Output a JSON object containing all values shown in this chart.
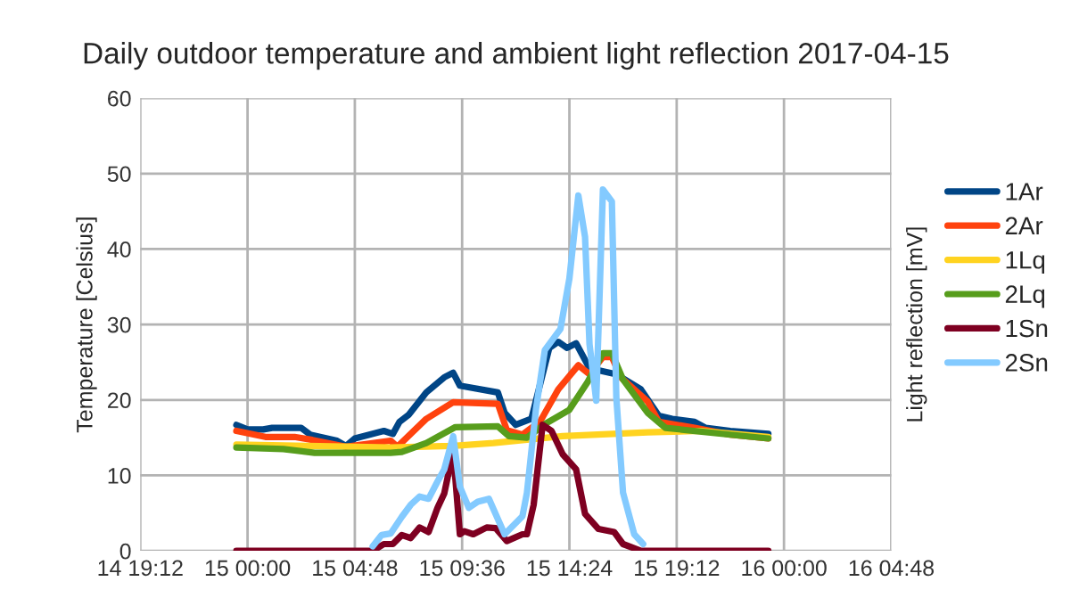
{
  "chart_data": {
    "type": "line",
    "title": "Daily outdoor temperature and ambient light reflection 2017-04-15",
    "ylabel": "Temperature [Celsius]",
    "y2label": "Light reflection [mV]",
    "xlim": [
      "2017-04-14T19:12",
      "2017-04-16T04:48"
    ],
    "xticks": [
      {
        "value": "2017-04-14T19:12",
        "label": "14 19:12"
      },
      {
        "value": "2017-04-15T00:00",
        "label": "15 00:00"
      },
      {
        "value": "2017-04-15T04:48",
        "label": "15 04:48"
      },
      {
        "value": "2017-04-15T09:36",
        "label": "15 09:36"
      },
      {
        "value": "2017-04-15T14:24",
        "label": "15 14:24"
      },
      {
        "value": "2017-04-15T19:12",
        "label": "15 19:12"
      },
      {
        "value": "2017-04-16T00:00",
        "label": "16 00:00"
      },
      {
        "value": "2017-04-16T04:48",
        "label": "16 04:48"
      }
    ],
    "ylim": [
      0,
      60
    ],
    "yticks": [
      0,
      10,
      20,
      30,
      40,
      50,
      60
    ],
    "grid": true,
    "legend": "right",
    "marker": "none",
    "line_style": "solid",
    "series": [
      {
        "name": "1Ar",
        "color": "#004586",
        "x": [
          "2017-04-14T23:30",
          "2017-04-15T00:00",
          "2017-04-15T00:42",
          "2017-04-15T01:06",
          "2017-04-15T02:24",
          "2017-04-15T02:48",
          "2017-04-15T04:00",
          "2017-04-15T04:24",
          "2017-04-15T04:48",
          "2017-04-15T06:06",
          "2017-04-15T06:30",
          "2017-04-15T06:48",
          "2017-04-15T07:12",
          "2017-04-15T08:00",
          "2017-04-15T08:48",
          "2017-04-15T09:12",
          "2017-04-15T09:30",
          "2017-04-15T11:12",
          "2017-04-15T11:30",
          "2017-04-15T12:00",
          "2017-04-15T12:42",
          "2017-04-15T13:30",
          "2017-04-15T13:54",
          "2017-04-15T14:18",
          "2017-04-15T14:42",
          "2017-04-15T15:18",
          "2017-04-15T16:30",
          "2017-04-15T17:36",
          "2017-04-15T18:24",
          "2017-04-15T19:00",
          "2017-04-15T20:00",
          "2017-04-15T20:30",
          "2017-04-15T21:36",
          "2017-04-15T23:18"
        ],
        "values": [
          16.7,
          16.1,
          16.1,
          16.3,
          16.3,
          15.4,
          14.6,
          13.9,
          14.9,
          15.9,
          15.5,
          17.1,
          18,
          21,
          23,
          23.6,
          21.9,
          21,
          18.3,
          16.7,
          17.5,
          26.9,
          27.7,
          26.9,
          27.5,
          24.2,
          23.4,
          21.4,
          17.9,
          17.5,
          17.1,
          16.3,
          15.9,
          15.5
        ]
      },
      {
        "name": "2Ar",
        "color": "#ff420e",
        "x": [
          "2017-04-14T23:30",
          "2017-04-15T00:48",
          "2017-04-15T02:06",
          "2017-04-15T02:54",
          "2017-04-15T04:24",
          "2017-04-15T06:24",
          "2017-04-15T06:42",
          "2017-04-15T08:00",
          "2017-04-15T09:12",
          "2017-04-15T11:12",
          "2017-04-15T11:36",
          "2017-04-15T12:18",
          "2017-04-15T13:06",
          "2017-04-15T13:54",
          "2017-04-15T14:48",
          "2017-04-15T15:18",
          "2017-04-15T15:54",
          "2017-04-15T16:18",
          "2017-04-15T16:42",
          "2017-04-15T17:54",
          "2017-04-15T18:24",
          "2017-04-15T20:00",
          "2017-04-15T21:36",
          "2017-04-15T23:18"
        ],
        "values": [
          15.9,
          15.1,
          15.1,
          14.7,
          13.8,
          14.6,
          13.8,
          17.5,
          19.7,
          19.5,
          16,
          15.4,
          17.2,
          21.4,
          24.6,
          23.4,
          25.7,
          25.7,
          23,
          19.8,
          17.1,
          16.3,
          15.4,
          14.9
        ]
      },
      {
        "name": "1Lq",
        "color": "#ffd320",
        "x": [
          "2017-04-14T23:30",
          "2017-04-15T06:24",
          "2017-04-15T09:06",
          "2017-04-15T11:00",
          "2017-04-15T14:06",
          "2017-04-15T17:54",
          "2017-04-15T20:18",
          "2017-04-15T23:18"
        ],
        "values": [
          14.1,
          13.7,
          13.9,
          14.3,
          15.2,
          15.7,
          15.9,
          15.1
        ]
      },
      {
        "name": "2Lq",
        "color": "#579d1c",
        "x": [
          "2017-04-14T23:30",
          "2017-04-15T01:36",
          "2017-04-15T03:00",
          "2017-04-15T06:24",
          "2017-04-15T06:54",
          "2017-04-15T08:00",
          "2017-04-15T09:18",
          "2017-04-15T11:12",
          "2017-04-15T11:42",
          "2017-04-15T12:30",
          "2017-04-15T13:18",
          "2017-04-15T14:24",
          "2017-04-15T15:12",
          "2017-04-15T15:54",
          "2017-04-15T16:18",
          "2017-04-15T16:48",
          "2017-04-15T17:54",
          "2017-04-15T18:42",
          "2017-04-15T21:36",
          "2017-04-15T23:18"
        ],
        "values": [
          13.7,
          13.5,
          13,
          13,
          13.1,
          14.3,
          16.4,
          16.5,
          15.2,
          15,
          16.8,
          18.7,
          22.3,
          26.2,
          26.2,
          22.7,
          18.3,
          16.3,
          15.4,
          14.9
        ]
      },
      {
        "name": "1Sn",
        "color": "#7e0021",
        "x": [
          "2017-04-14T23:30",
          "2017-04-15T05:36",
          "2017-04-15T06:06",
          "2017-04-15T06:30",
          "2017-04-15T06:54",
          "2017-04-15T07:18",
          "2017-04-15T07:42",
          "2017-04-15T08:06",
          "2017-04-15T08:30",
          "2017-04-15T08:48",
          "2017-04-15T09:12",
          "2017-04-15T09:30",
          "2017-04-15T09:42",
          "2017-04-15T10:06",
          "2017-04-15T10:42",
          "2017-04-15T11:06",
          "2017-04-15T11:36",
          "2017-04-15T12:18",
          "2017-04-15T12:30",
          "2017-04-15T12:48",
          "2017-04-15T13:12",
          "2017-04-15T13:36",
          "2017-04-15T14:06",
          "2017-04-15T14:42",
          "2017-04-15T15:06",
          "2017-04-15T15:42",
          "2017-04-15T16:24",
          "2017-04-15T16:48",
          "2017-04-15T17:36",
          "2017-04-15T23:18"
        ],
        "values": [
          0,
          0,
          0.9,
          0.9,
          2.1,
          1.7,
          3.1,
          2.5,
          5.7,
          7.6,
          13.2,
          2.2,
          2.6,
          2.2,
          3.1,
          3,
          1.3,
          2.2,
          2.2,
          6.1,
          16.7,
          15.9,
          12.8,
          10.8,
          4.9,
          2.9,
          2.5,
          0.9,
          0,
          0
        ]
      },
      {
        "name": "2Sn",
        "color": "#83caff",
        "x": [
          "2017-04-15T05:36",
          "2017-04-15T06:00",
          "2017-04-15T06:24",
          "2017-04-15T06:54",
          "2017-04-15T07:18",
          "2017-04-15T07:42",
          "2017-04-15T08:06",
          "2017-04-15T08:30",
          "2017-04-15T08:48",
          "2017-04-15T09:12",
          "2017-04-15T09:30",
          "2017-04-15T09:54",
          "2017-04-15T10:18",
          "2017-04-15T10:48",
          "2017-04-15T11:30",
          "2017-04-15T12:18",
          "2017-04-15T12:30",
          "2017-04-15T12:54",
          "2017-04-15T13:18",
          "2017-04-15T14:00",
          "2017-04-15T14:24",
          "2017-04-15T14:48",
          "2017-04-15T15:06",
          "2017-04-15T15:18",
          "2017-04-15T15:36",
          "2017-04-15T15:54",
          "2017-04-15T16:18",
          "2017-04-15T16:30",
          "2017-04-15T16:48",
          "2017-04-15T17:18",
          "2017-04-15T17:42"
        ],
        "values": [
          0.6,
          2.1,
          2.3,
          4.5,
          6.1,
          7.2,
          6.9,
          9.2,
          10.8,
          15.2,
          8.5,
          5.7,
          6.5,
          6.9,
          2.2,
          4.6,
          7.7,
          18.7,
          26.6,
          29.4,
          36.1,
          47.1,
          41.6,
          27.4,
          19.9,
          47.9,
          46.3,
          20.3,
          7.7,
          2.2,
          0.9
        ]
      }
    ]
  }
}
